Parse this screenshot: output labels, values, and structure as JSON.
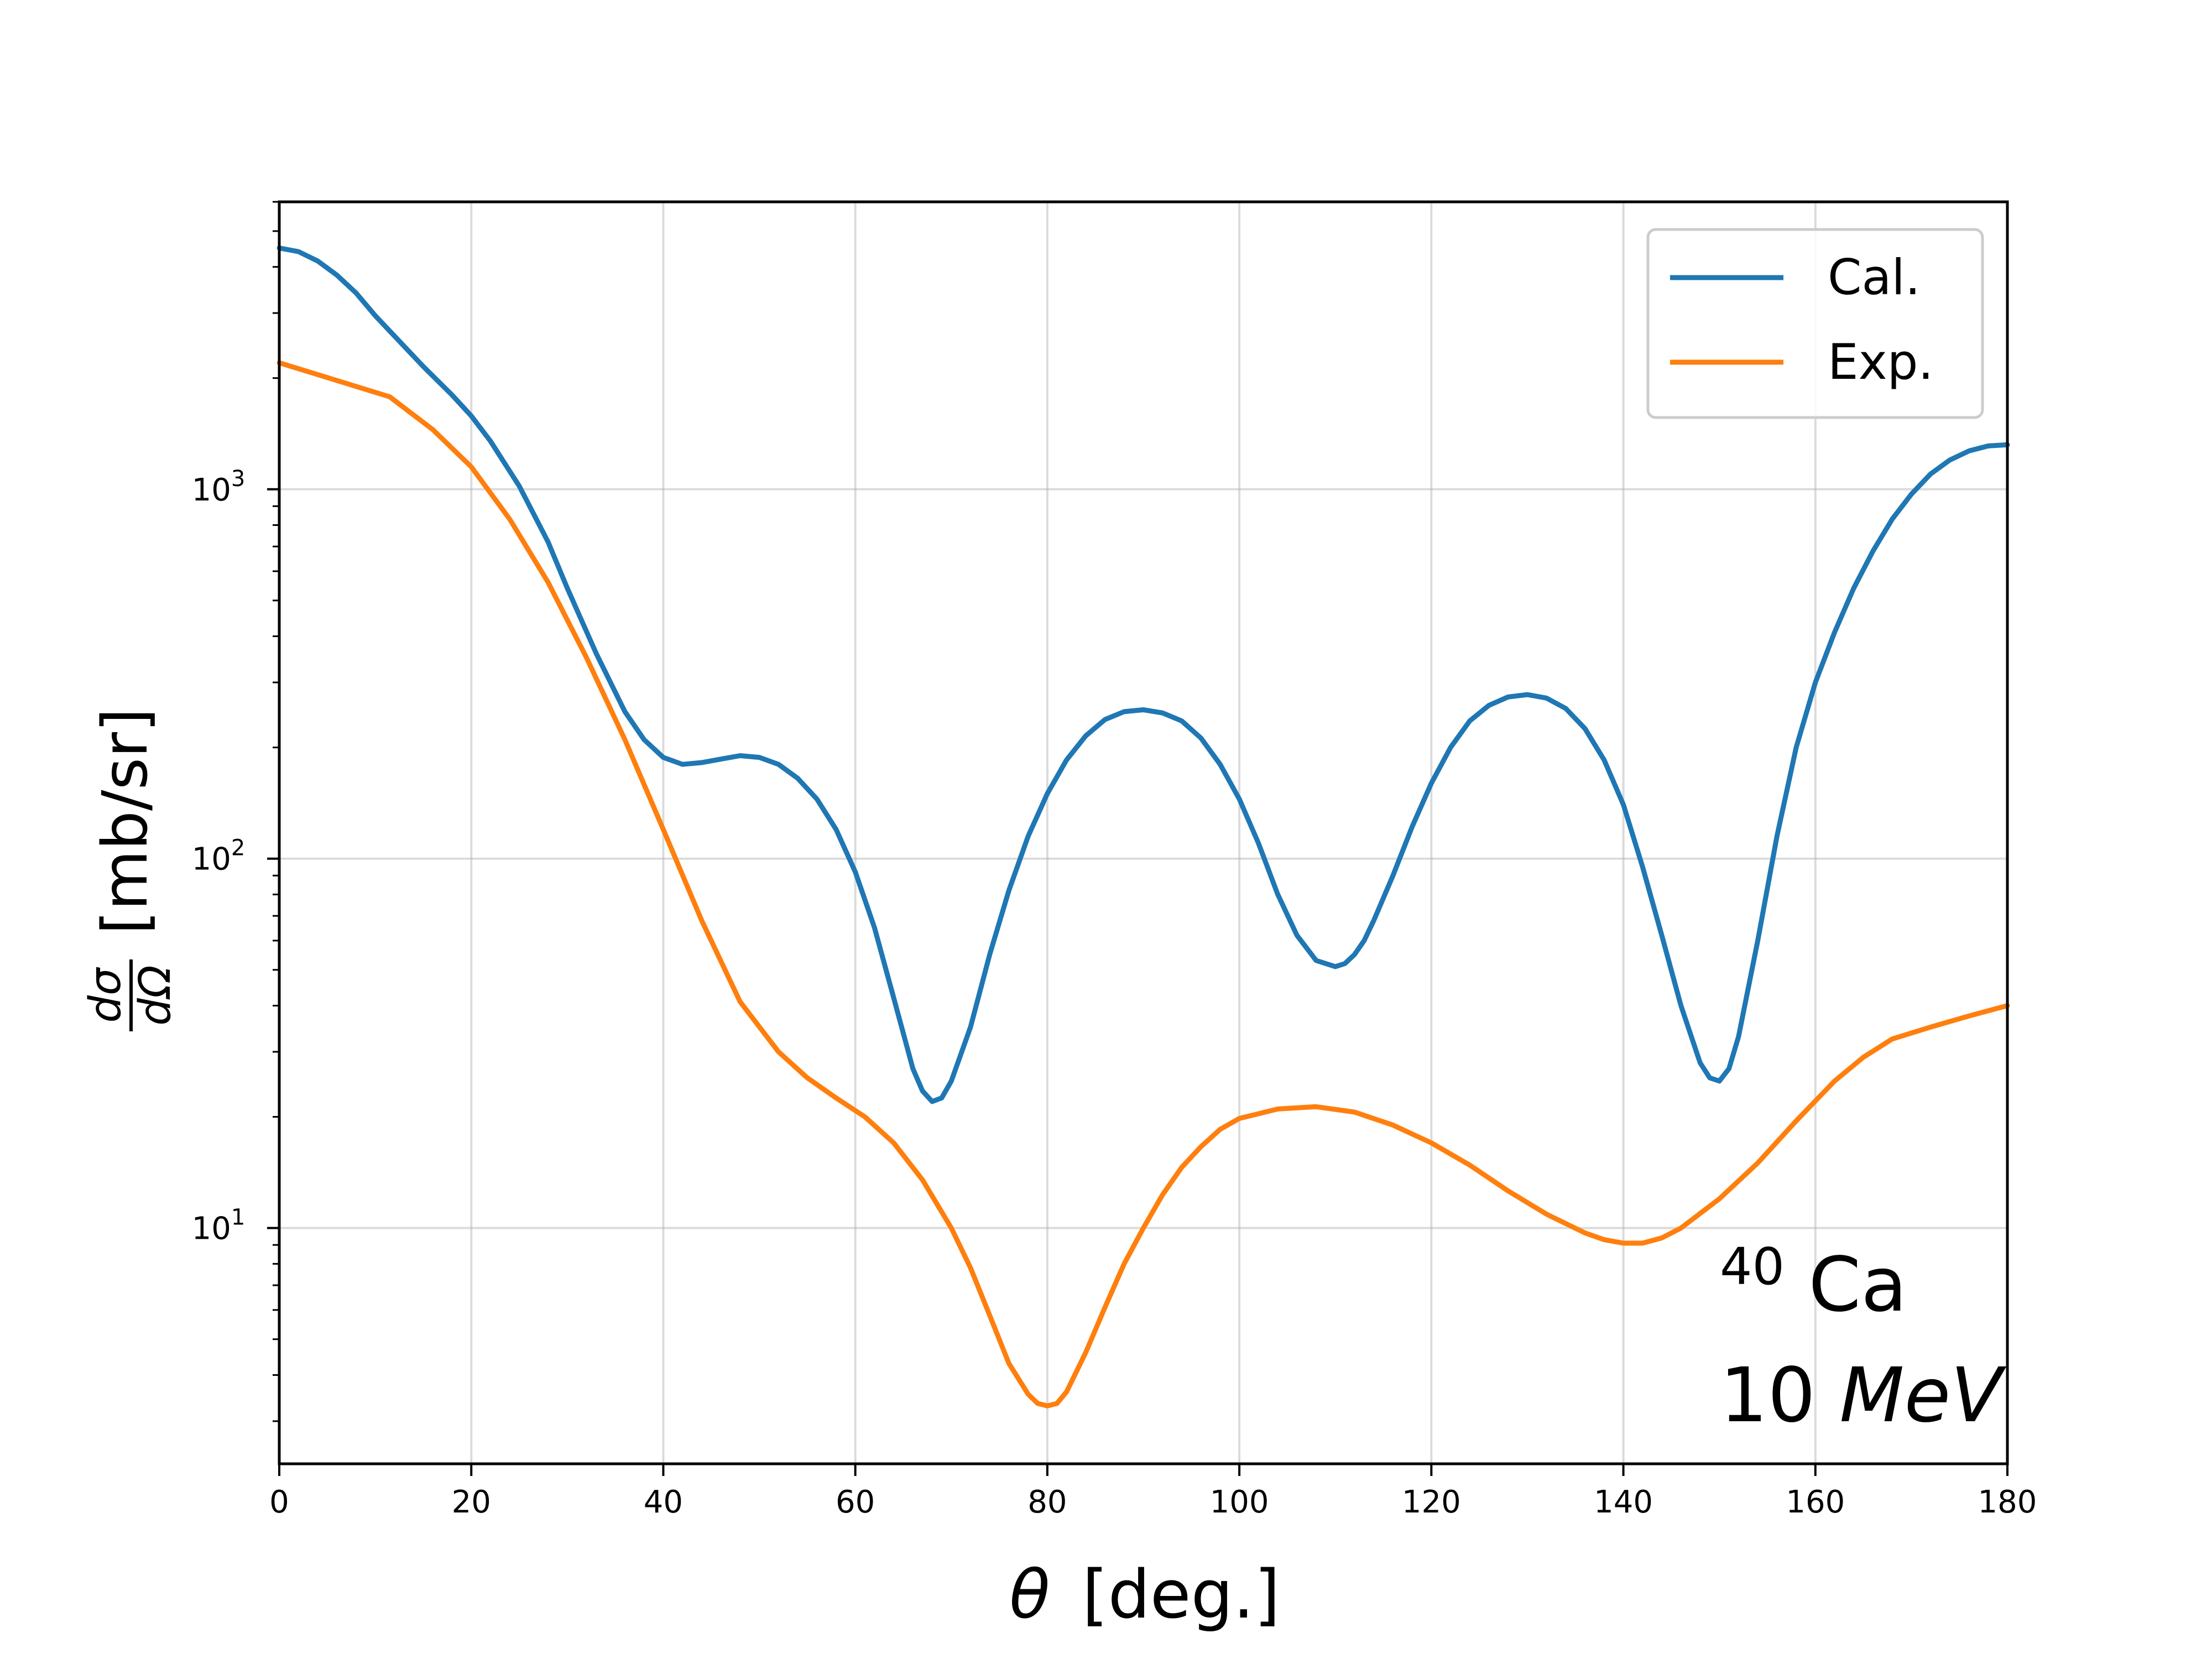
{
  "chart_data": {
    "type": "line",
    "xlabel_symbol": "θ",
    "xlabel_unit": "[deg.]",
    "ylabel_num": "dσ",
    "ylabel_den": "dΩ",
    "ylabel_unit": "[mb/sr]",
    "yscale": "log",
    "xlim": [
      0,
      180
    ],
    "ylim": [
      2.3,
      6000
    ],
    "grid": true,
    "legend_position": "top-right",
    "x_ticks": [
      0,
      20,
      40,
      60,
      80,
      100,
      120,
      140,
      160,
      180
    ],
    "y_ticks": [
      {
        "value": 10,
        "base": "10",
        "exp": "1"
      },
      {
        "value": 100,
        "base": "10",
        "exp": "2"
      },
      {
        "value": 1000,
        "base": "10",
        "exp": "3"
      }
    ],
    "annotation": {
      "mass_number": "40",
      "element": "Ca",
      "energy_value": "10",
      "energy_unit": "MeV"
    },
    "series": [
      {
        "name": "Cal.",
        "color": "#1f77b4",
        "x": [
          0,
          2,
          4,
          6,
          8,
          10,
          12,
          15,
          18,
          20,
          22,
          25,
          28,
          30,
          33,
          36,
          38,
          40,
          42,
          44,
          46,
          48,
          50,
          52,
          54,
          56,
          58,
          60,
          62,
          64,
          66,
          67,
          68,
          69,
          70,
          72,
          74,
          76,
          78,
          80,
          82,
          84,
          86,
          88,
          90,
          92,
          94,
          96,
          98,
          100,
          102,
          104,
          106,
          108,
          110,
          111,
          112,
          113,
          114,
          116,
          118,
          120,
          122,
          124,
          126,
          128,
          130,
          132,
          134,
          136,
          138,
          140,
          142,
          144,
          146,
          148,
          149,
          150,
          151,
          152,
          154,
          156,
          158,
          160,
          162,
          164,
          166,
          168,
          170,
          172,
          174,
          176,
          178,
          180
        ],
        "y": [
          4500,
          4400,
          4150,
          3800,
          3400,
          2950,
          2600,
          2150,
          1800,
          1580,
          1350,
          1020,
          720,
          540,
          360,
          250,
          210,
          188,
          180,
          182,
          186,
          190,
          188,
          180,
          165,
          145,
          120,
          92,
          65,
          42,
          27,
          23.5,
          22,
          22.5,
          25,
          35,
          55,
          82,
          115,
          150,
          185,
          215,
          238,
          250,
          253,
          248,
          236,
          212,
          180,
          145,
          110,
          80,
          62,
          53,
          51,
          52,
          55,
          60,
          68,
          90,
          122,
          160,
          200,
          236,
          260,
          274,
          278,
          272,
          255,
          225,
          185,
          140,
          95,
          62,
          40,
          28,
          25.5,
          25,
          27,
          33,
          60,
          115,
          200,
          300,
          410,
          540,
          680,
          830,
          970,
          1100,
          1200,
          1270,
          1310,
          1320
        ]
      },
      {
        "name": "Exp.",
        "color": "#ff7f0e",
        "x": [
          0,
          11.5,
          16,
          20,
          24,
          28,
          32,
          36,
          40,
          44,
          48,
          52,
          55,
          58,
          61,
          64,
          67,
          70,
          72,
          74,
          76,
          78,
          79,
          80,
          81,
          82,
          84,
          86,
          88,
          90,
          92,
          94,
          96,
          98,
          100,
          104,
          108,
          112,
          116,
          120,
          124,
          128,
          132,
          136,
          138,
          140,
          142,
          144,
          146,
          150,
          154,
          158,
          162,
          165,
          168,
          172,
          176,
          180
        ],
        "y": [
          2200,
          1780,
          1450,
          1150,
          830,
          560,
          350,
          210,
          120,
          68,
          41,
          30,
          25.5,
          22.5,
          20,
          17,
          13.5,
          10,
          7.8,
          5.8,
          4.3,
          3.55,
          3.35,
          3.3,
          3.35,
          3.6,
          4.6,
          6.1,
          8,
          10,
          12.3,
          14.6,
          16.6,
          18.5,
          19.8,
          21,
          21.3,
          20.6,
          19,
          17,
          14.8,
          12.6,
          10.9,
          9.7,
          9.3,
          9.1,
          9.1,
          9.4,
          10,
          12,
          15,
          19.5,
          25,
          29,
          32.5,
          35,
          37.5,
          40
        ]
      }
    ]
  }
}
